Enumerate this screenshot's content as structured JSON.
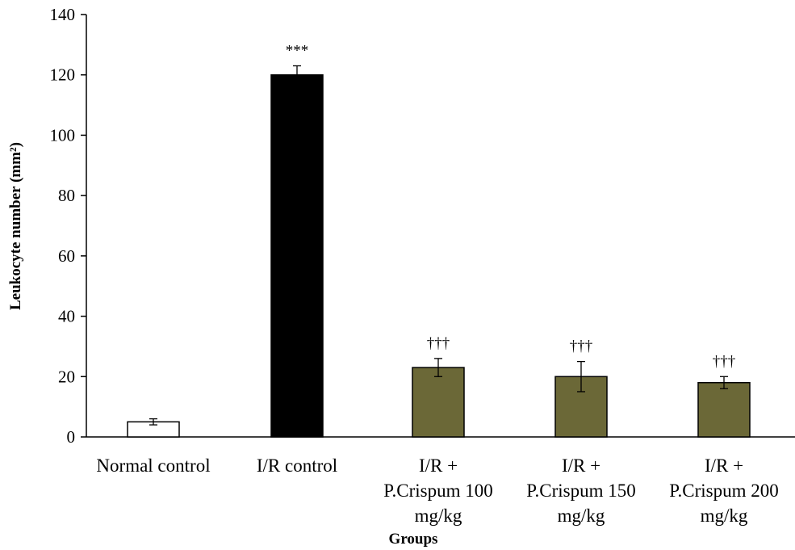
{
  "chart_data": {
    "type": "bar",
    "xlabel": "Groups",
    "ylabel": "Leukocyte number (mm²)",
    "ylim": [
      0,
      140
    ],
    "yticks": [
      0,
      20,
      40,
      60,
      80,
      100,
      120,
      140
    ],
    "grid": false,
    "legend": "none",
    "categories": [
      [
        "Normal control"
      ],
      [
        "I/R control"
      ],
      [
        "I/R +",
        "P.Crispum 100",
        "mg/kg"
      ],
      [
        "I/R +",
        "P.Crispum 150",
        "mg/kg"
      ],
      [
        "I/R +",
        "P.Crispum 200",
        "mg/kg"
      ]
    ],
    "values": [
      5,
      120,
      23,
      20,
      18
    ],
    "errors": [
      1,
      3,
      3,
      5,
      2
    ],
    "significance": [
      "",
      "***",
      "†††",
      "†††",
      "†††"
    ],
    "colors": [
      "#ffffff",
      "#000000",
      "#6b6837",
      "#6b6837",
      "#6b6837"
    ]
  }
}
